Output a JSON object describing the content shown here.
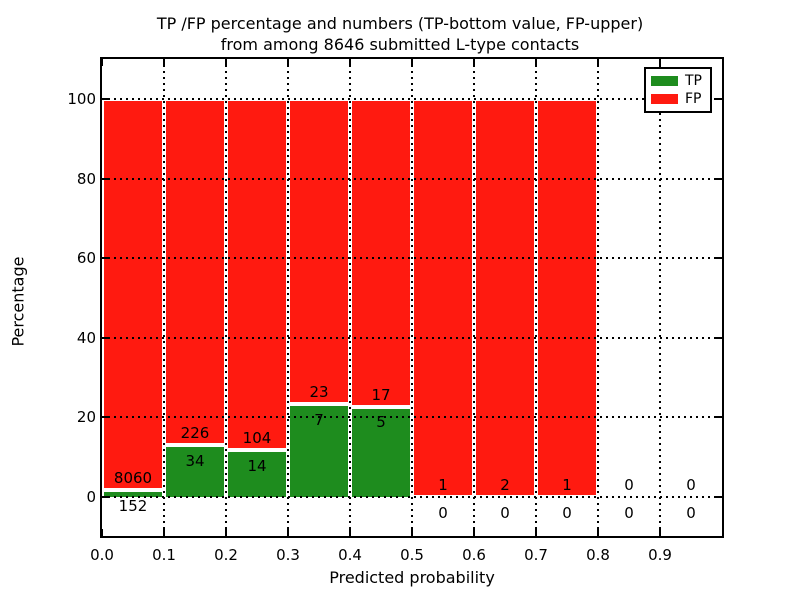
{
  "header": {
    "line1": "TP /FP percentage and numbers (TP-bottom value, FP-upper)",
    "line2": "from among 8646 submitted L-type contacts"
  },
  "axes": {
    "xlabel": "Predicted probability",
    "ylabel": "Percentage",
    "xtick_labels": [
      "0.0",
      "0.1",
      "0.2",
      "0.3",
      "0.4",
      "0.5",
      "0.6",
      "0.7",
      "0.8",
      "0.9"
    ],
    "xtick_values": [
      0.0,
      0.1,
      0.2,
      0.3,
      0.4,
      0.5,
      0.6,
      0.7,
      0.8,
      0.9
    ],
    "ytick_labels": [
      "0",
      "20",
      "40",
      "60",
      "80",
      "100"
    ],
    "ytick_values": [
      0,
      20,
      40,
      60,
      80,
      100
    ]
  },
  "legend": {
    "items": [
      {
        "label": "TP",
        "color": "#1e8c1e"
      },
      {
        "label": "FP",
        "color": "#ff1a10"
      }
    ]
  },
  "chart_data": {
    "type": "bar",
    "stacked": true,
    "title": "TP /FP percentage and numbers (TP-bottom value, FP-upper) from among 8646 submitted L-type contacts",
    "total_contacts": 8646,
    "xlabel": "Predicted probability",
    "ylabel": "Percentage",
    "xlim": [
      0.0,
      1.0
    ],
    "ylim": [
      -10,
      110
    ],
    "grid": true,
    "legend_position": "upper right",
    "bin_width": 0.1,
    "bins": [
      {
        "range": [
          0.0,
          0.1
        ],
        "tp": 152,
        "fp": 8060,
        "tp_pct": 1.85,
        "fp_pct": 98.15
      },
      {
        "range": [
          0.1,
          0.2
        ],
        "tp": 34,
        "fp": 226,
        "tp_pct": 13.08,
        "fp_pct": 86.92
      },
      {
        "range": [
          0.2,
          0.3
        ],
        "tp": 14,
        "fp": 104,
        "tp_pct": 11.86,
        "fp_pct": 88.14
      },
      {
        "range": [
          0.3,
          0.4
        ],
        "tp": 7,
        "fp": 23,
        "tp_pct": 23.33,
        "fp_pct": 76.67
      },
      {
        "range": [
          0.4,
          0.5
        ],
        "tp": 5,
        "fp": 17,
        "tp_pct": 22.73,
        "fp_pct": 77.27
      },
      {
        "range": [
          0.5,
          0.6
        ],
        "tp": 0,
        "fp": 1,
        "tp_pct": 0,
        "fp_pct": 100
      },
      {
        "range": [
          0.6,
          0.7
        ],
        "tp": 0,
        "fp": 2,
        "tp_pct": 0,
        "fp_pct": 100
      },
      {
        "range": [
          0.7,
          0.8
        ],
        "tp": 0,
        "fp": 1,
        "tp_pct": 0,
        "fp_pct": 100
      },
      {
        "range": [
          0.8,
          0.9
        ],
        "tp": 0,
        "fp": 0,
        "tp_pct": null,
        "fp_pct": null
      },
      {
        "range": [
          0.9,
          1.0
        ],
        "tp": 0,
        "fp": 0,
        "tp_pct": null,
        "fp_pct": null
      }
    ],
    "series": [
      {
        "name": "TP",
        "color": "#1e8c1e"
      },
      {
        "name": "FP",
        "color": "#ff1a10"
      }
    ]
  }
}
